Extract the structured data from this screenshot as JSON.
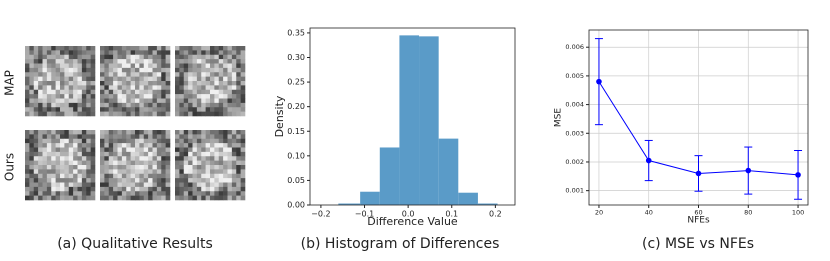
{
  "panel_a": {
    "row_labels": [
      "MAP",
      "Ours"
    ],
    "caption": "(a) Qualitative Results"
  },
  "chart_data": [
    {
      "type": "histogram",
      "caption": "(b) Histogram of Differences",
      "x_label": "Difference Value",
      "y_label": "Density",
      "bins": [
        -0.16,
        -0.11,
        -0.065,
        -0.02,
        0.025,
        0.07,
        0.115,
        0.16,
        0.205
      ],
      "values": [
        0.003,
        0.027,
        0.117,
        0.345,
        0.343,
        0.135,
        0.025,
        0.003
      ],
      "color": "#5a9bc8",
      "xlim": [
        -0.225,
        0.245
      ],
      "ylim": [
        0,
        0.36
      ],
      "xticks": [
        {
          "value": -0.2,
          "label": "−0.2"
        },
        {
          "value": -0.1,
          "label": "−0.1"
        },
        {
          "value": 0,
          "label": "0.0"
        },
        {
          "value": 0.1,
          "label": "0.1"
        },
        {
          "value": 0.2,
          "label": "0.2"
        }
      ],
      "yticks": [
        {
          "value": 0,
          "label": "0.00"
        },
        {
          "value": 0.05,
          "label": "0.05"
        },
        {
          "value": 0.1,
          "label": "0.10"
        },
        {
          "value": 0.15,
          "label": "0.15"
        },
        {
          "value": 0.2,
          "label": "0.20"
        },
        {
          "value": 0.25,
          "label": "0.25"
        },
        {
          "value": 0.3,
          "label": "0.30"
        },
        {
          "value": 0.35,
          "label": "0.35"
        }
      ],
      "grid": false
    },
    {
      "type": "line",
      "caption": "(c) MSE vs NFEs",
      "x_label": "NFEs",
      "y_label": "MSE",
      "x": [
        20,
        40,
        60,
        80,
        100
      ],
      "values": [
        0.0048,
        0.00205,
        0.0016,
        0.0017,
        0.00155
      ],
      "errors": [
        0.0015,
        0.0007,
        0.00062,
        0.00082,
        0.00085
      ],
      "color": "#0000ff",
      "xlim": [
        16,
        104
      ],
      "ylim": [
        0.0005,
        0.0066
      ],
      "xticks": [
        20,
        40,
        60,
        80,
        100
      ],
      "yticks": [
        0.001,
        0.002,
        0.003,
        0.004,
        0.005,
        0.006
      ],
      "grid": true
    }
  ]
}
